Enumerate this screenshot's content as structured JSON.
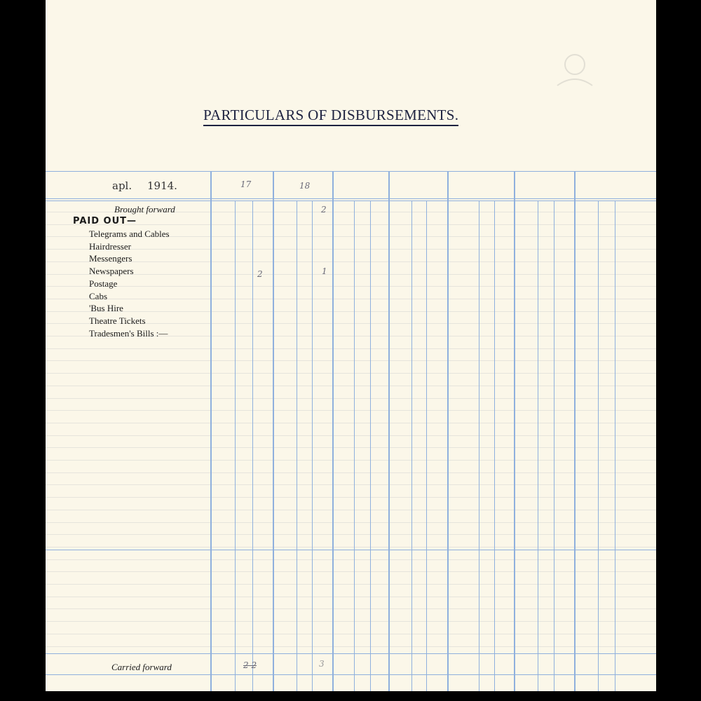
{
  "document": {
    "title": "PARTICULARS OF DISBURSEMENTS.",
    "header": {
      "month": "apl.",
      "year": "1914.",
      "columns": [
        "17",
        "18"
      ]
    },
    "brought_forward": {
      "label": "Brought forward",
      "entries": [
        "2"
      ]
    },
    "paid_out": {
      "heading": "PAID OUT—",
      "items": [
        "Telegrams and Cables",
        "Hairdresser",
        "Messengers",
        "Newspapers",
        "Postage",
        "Cabs",
        "'Bus Hire",
        "Theatre Tickets",
        "Tradesmen's Bills :—"
      ],
      "newspapers_entries": [
        "2",
        "1"
      ]
    },
    "carried_forward": {
      "label": "Carried forward",
      "entries": [
        "2 2",
        "3"
      ]
    },
    "colors": {
      "paper": "#fbf7e9",
      "rule": "#8fb0dd",
      "ink": "#1d2240"
    }
  }
}
